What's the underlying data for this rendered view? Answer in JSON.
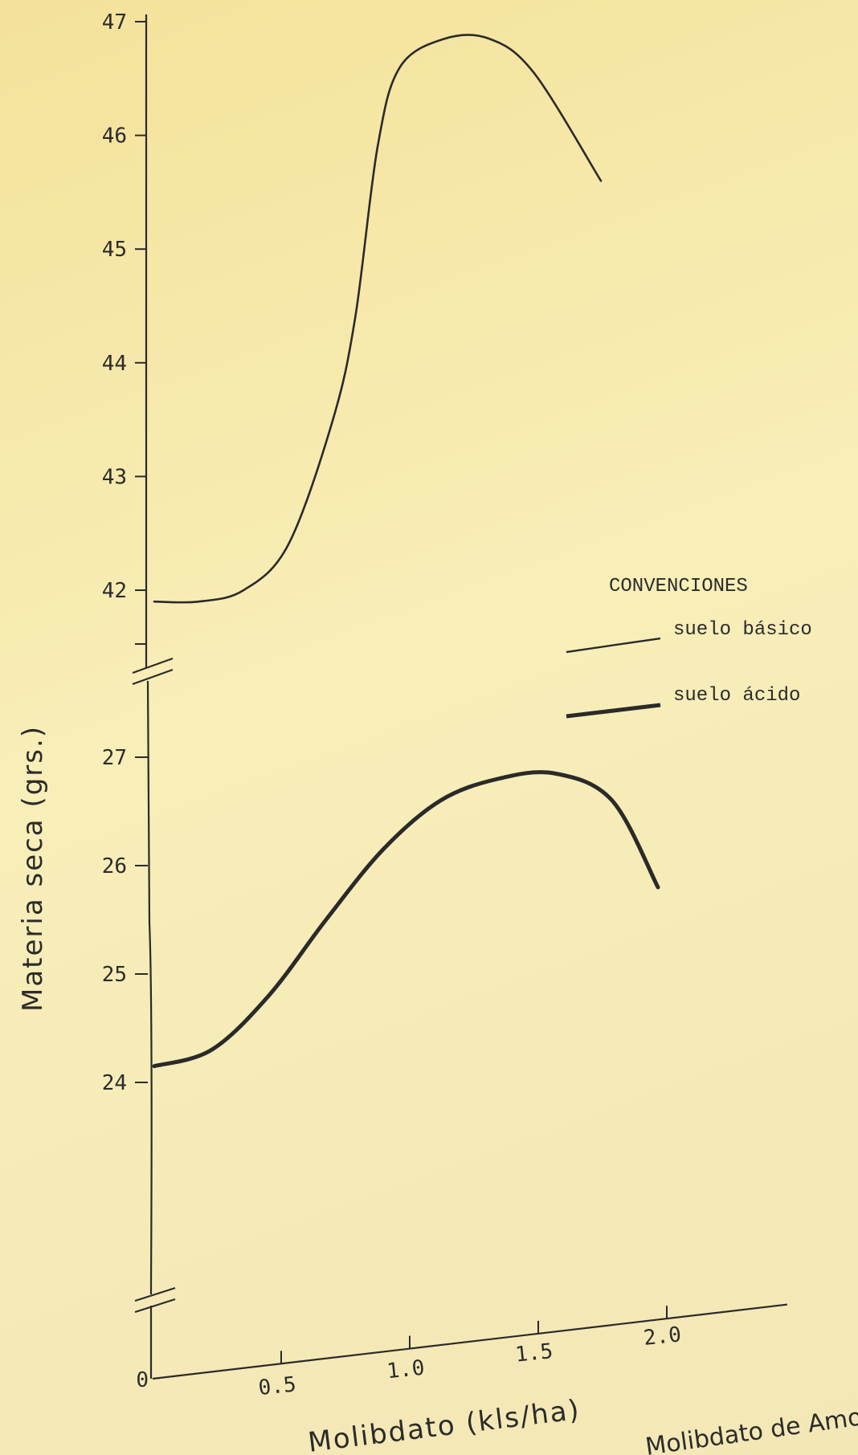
{
  "chart_data": {
    "type": "line",
    "xlabel": "Molibdato (kls/ha)",
    "ylabel": "Materia seca (grs.)",
    "origin_label": "0",
    "x_ticks": [
      "0.5",
      "1.0",
      "1.5",
      "2.0"
    ],
    "y_ticks_upper": [
      "47",
      "46",
      "45",
      "44",
      "43",
      "42"
    ],
    "y_ticks_lower": [
      "27",
      "26",
      "25",
      "24"
    ],
    "ylim_upper": [
      41.2,
      47
    ],
    "ylim_lower": [
      23.6,
      27
    ],
    "legend": {
      "title": "CONVENCIONES",
      "position": "right"
    },
    "series": [
      {
        "name": "suelo básico",
        "style": "thin",
        "x": [
          0.0,
          0.2,
          0.4,
          0.6,
          0.8,
          0.9,
          1.0,
          1.1,
          1.3,
          1.5,
          1.7,
          2.0
        ],
        "y": [
          41.9,
          41.9,
          42.0,
          42.4,
          43.5,
          44.4,
          45.9,
          46.6,
          46.85,
          46.85,
          46.55,
          45.6
        ]
      },
      {
        "name": "suelo ácido",
        "style": "thick",
        "x": [
          0.0,
          0.25,
          0.5,
          0.75,
          1.0,
          1.25,
          1.5,
          1.75,
          2.0,
          2.2
        ],
        "y": [
          24.15,
          24.3,
          24.8,
          25.5,
          26.15,
          26.6,
          26.8,
          26.85,
          26.6,
          25.8
        ]
      }
    ],
    "cut_text": "Molibdato de Amoni"
  },
  "colors": {
    "ink": "#2a2a2a",
    "paper": "#f6e9a6"
  }
}
